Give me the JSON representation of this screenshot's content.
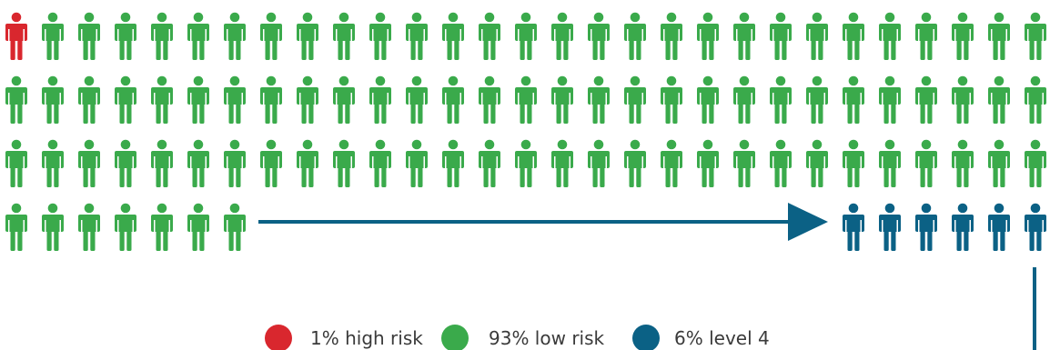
{
  "chart_data": {
    "type": "pictogram",
    "total_icons": 100,
    "series": [
      {
        "name": "1% high risk",
        "percent": 1,
        "count": 1,
        "color": "#d9272e"
      },
      {
        "name": "93% low risk",
        "percent": 93,
        "count": 93,
        "color": "#3aaa4b"
      },
      {
        "name": "6% level 4",
        "percent": 6,
        "count": 6,
        "color": "#0b6185"
      }
    ],
    "arrow_color": "#0b6185",
    "legend": {
      "placement": "bottom-center",
      "items": [
        {
          "label": "1% high risk",
          "color": "#d9272e"
        },
        {
          "label": "93% low risk",
          "color": "#3aaa4b"
        },
        {
          "label": "6% level 4",
          "color": "#0b6185"
        }
      ]
    }
  }
}
